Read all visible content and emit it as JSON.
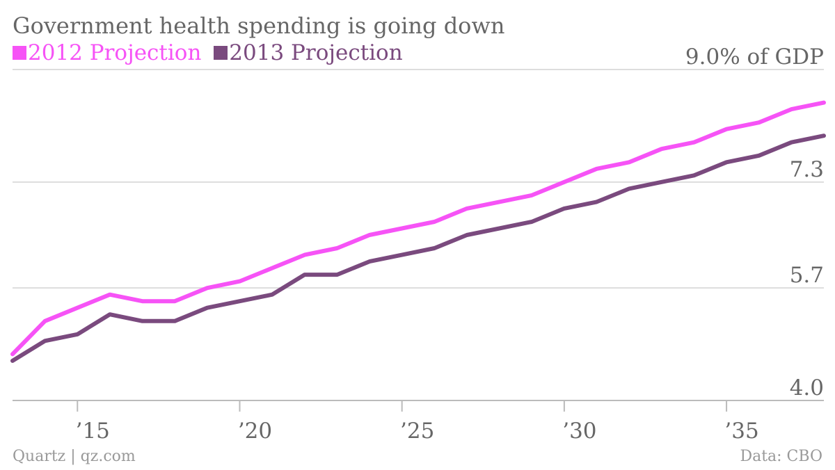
{
  "chart_data": {
    "type": "line",
    "title": "Government health spending is going down",
    "y_unit_label": "9.0% of GDP",
    "ylim": [
      4.0,
      9.0
    ],
    "y_ticks": [
      {
        "value": 9.0,
        "label": "9.0% of GDP"
      },
      {
        "value": 7.3,
        "label": "7.3"
      },
      {
        "value": 5.7,
        "label": "5.7"
      },
      {
        "value": 4.0,
        "label": "4.0"
      }
    ],
    "xlim": [
      2013,
      2038
    ],
    "x_ticks": [
      {
        "value": 2015,
        "label": "’15"
      },
      {
        "value": 2020,
        "label": "’20"
      },
      {
        "value": 2025,
        "label": "’25"
      },
      {
        "value": 2030,
        "label": "’30"
      },
      {
        "value": 2035,
        "label": "’35"
      }
    ],
    "x": [
      2013,
      2014,
      2015,
      2016,
      2017,
      2018,
      2019,
      2020,
      2021,
      2022,
      2023,
      2024,
      2025,
      2026,
      2027,
      2028,
      2029,
      2030,
      2031,
      2032,
      2033,
      2034,
      2035,
      2036,
      2037,
      2038
    ],
    "series": [
      {
        "name": "2012 Projection",
        "color": "#f653f6",
        "values": [
          4.7,
          5.2,
          5.4,
          5.6,
          5.5,
          5.5,
          5.7,
          5.8,
          6.0,
          6.2,
          6.3,
          6.5,
          6.6,
          6.7,
          6.9,
          7.0,
          7.1,
          7.3,
          7.5,
          7.6,
          7.8,
          7.9,
          8.1,
          8.2,
          8.4,
          8.5
        ]
      },
      {
        "name": "2013 Projection",
        "color": "#7a4a7e",
        "values": [
          4.6,
          4.9,
          5.0,
          5.3,
          5.2,
          5.2,
          5.4,
          5.5,
          5.6,
          5.9,
          5.9,
          6.1,
          6.2,
          6.3,
          6.5,
          6.6,
          6.7,
          6.9,
          7.0,
          7.2,
          7.3,
          7.4,
          7.6,
          7.7,
          7.9,
          8.0
        ]
      }
    ],
    "grid": true,
    "legend_position": "top-left"
  },
  "footer": {
    "source_left": "Quartz | qz.com",
    "source_right": "Data: CBO"
  },
  "colors": {
    "grid": "#dddddd",
    "axis_text": "#666666",
    "footer_text": "#999999"
  }
}
